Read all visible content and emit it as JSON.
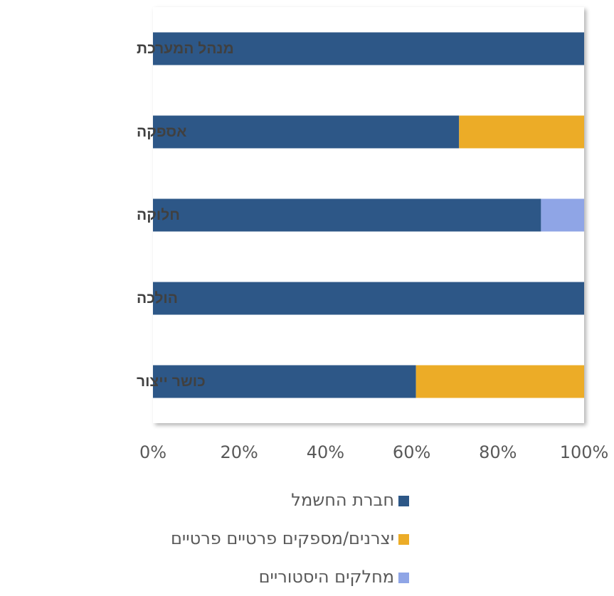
{
  "chart_data": {
    "type": "bar",
    "orientation": "horizontal",
    "stacked": "percent",
    "categories": [
      "מנהל המערכת",
      "אספקה",
      "חלוקה",
      "הולכה",
      "כושר ייצור"
    ],
    "series": [
      {
        "name": "חברת החשמל",
        "color": "#2d5787",
        "values": [
          100,
          71,
          90,
          100,
          61
        ]
      },
      {
        "name": "יצרנים/מספקים פרטיים פרטיים",
        "color": "#ecac27",
        "values": [
          0,
          29,
          0,
          0,
          39
        ]
      },
      {
        "name": "מחלקים היסטוריים",
        "color": "#8fa5e6",
        "values": [
          0,
          0,
          10,
          0,
          0
        ]
      }
    ],
    "x_ticks": [
      "0%",
      "20%",
      "40%",
      "60%",
      "80%",
      "100%"
    ],
    "xlim": [
      0,
      100
    ],
    "title": "",
    "xlabel": "",
    "ylabel": "",
    "grid": false,
    "legend_position": "bottom"
  }
}
